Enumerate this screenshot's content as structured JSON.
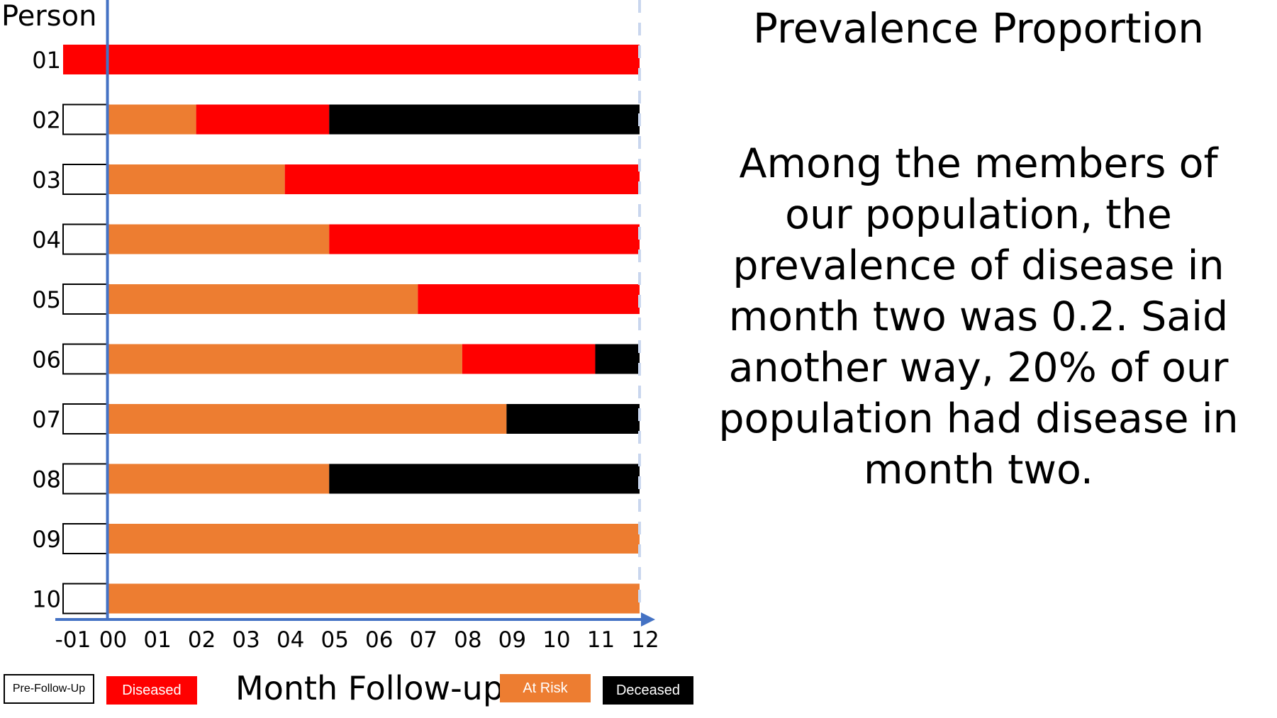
{
  "chart_data": {
    "type": "bar",
    "orientation": "horizontal",
    "stacked": true,
    "ylabel": "Person",
    "xlabel": "Month Follow-up",
    "x_ticks": [
      "-01",
      "00",
      "01",
      "02",
      "03",
      "04",
      "05",
      "06",
      "07",
      "08",
      "09",
      "10",
      "11",
      "12"
    ],
    "xlim": [
      -1,
      12
    ],
    "categories": [
      "01",
      "02",
      "03",
      "04",
      "05",
      "06",
      "07",
      "08",
      "09",
      "10"
    ],
    "status_colors": {
      "Pre-Follow-Up": "#ffffff",
      "Diseased": "#ff0000",
      "At Risk": "#ed7d31",
      "Deceased": "#000000"
    },
    "rows": [
      {
        "person": "01",
        "segments": [
          {
            "status": "Diseased",
            "start": -1,
            "end": 12
          }
        ]
      },
      {
        "person": "02",
        "segments": [
          {
            "status": "Pre-Follow-Up",
            "start": -1,
            "end": 0
          },
          {
            "status": "At Risk",
            "start": 0,
            "end": 2
          },
          {
            "status": "Diseased",
            "start": 2,
            "end": 5
          },
          {
            "status": "Deceased",
            "start": 5,
            "end": 12
          }
        ]
      },
      {
        "person": "03",
        "segments": [
          {
            "status": "Pre-Follow-Up",
            "start": -1,
            "end": 0
          },
          {
            "status": "At Risk",
            "start": 0,
            "end": 4
          },
          {
            "status": "Diseased",
            "start": 4,
            "end": 12
          }
        ]
      },
      {
        "person": "04",
        "segments": [
          {
            "status": "Pre-Follow-Up",
            "start": -1,
            "end": 0
          },
          {
            "status": "At Risk",
            "start": 0,
            "end": 5
          },
          {
            "status": "Diseased",
            "start": 5,
            "end": 12
          }
        ]
      },
      {
        "person": "05",
        "segments": [
          {
            "status": "Pre-Follow-Up",
            "start": -1,
            "end": 0
          },
          {
            "status": "At Risk",
            "start": 0,
            "end": 7
          },
          {
            "status": "Diseased",
            "start": 7,
            "end": 12
          }
        ]
      },
      {
        "person": "06",
        "segments": [
          {
            "status": "Pre-Follow-Up",
            "start": -1,
            "end": 0
          },
          {
            "status": "At Risk",
            "start": 0,
            "end": 8
          },
          {
            "status": "Diseased",
            "start": 8,
            "end": 11
          },
          {
            "status": "Deceased",
            "start": 11,
            "end": 12
          }
        ]
      },
      {
        "person": "07",
        "segments": [
          {
            "status": "Pre-Follow-Up",
            "start": -1,
            "end": 0
          },
          {
            "status": "At Risk",
            "start": 0,
            "end": 9
          },
          {
            "status": "Deceased",
            "start": 9,
            "end": 12
          }
        ]
      },
      {
        "person": "08",
        "segments": [
          {
            "status": "Pre-Follow-Up",
            "start": -1,
            "end": 0
          },
          {
            "status": "At Risk",
            "start": 0,
            "end": 5
          },
          {
            "status": "Deceased",
            "start": 5,
            "end": 12
          }
        ]
      },
      {
        "person": "09",
        "segments": [
          {
            "status": "Pre-Follow-Up",
            "start": -1,
            "end": 0
          },
          {
            "status": "At Risk",
            "start": 0,
            "end": 12
          }
        ]
      },
      {
        "person": "10",
        "segments": [
          {
            "status": "Pre-Follow-Up",
            "start": -1,
            "end": 0
          },
          {
            "status": "At Risk",
            "start": 0,
            "end": 12
          }
        ]
      }
    ],
    "legend": [
      "Pre-Follow-Up",
      "Diseased",
      "At Risk",
      "Deceased"
    ],
    "legend_placement": "bottom",
    "axis_color": "#4472c4",
    "reference_line": {
      "x": 12,
      "style": "dashed",
      "color": "#c9d6ee"
    }
  },
  "legend_labels": {
    "pre_follow_up": "Pre-Follow-Up",
    "diseased": "Diseased",
    "at_risk": "At Risk",
    "deceased": "Deceased"
  },
  "right_panel": {
    "title": "Prevalence Proportion",
    "body": "Among the members of our population, the prevalence of disease in month two was 0.2. Said another way, 20% of our population had disease in month two."
  }
}
